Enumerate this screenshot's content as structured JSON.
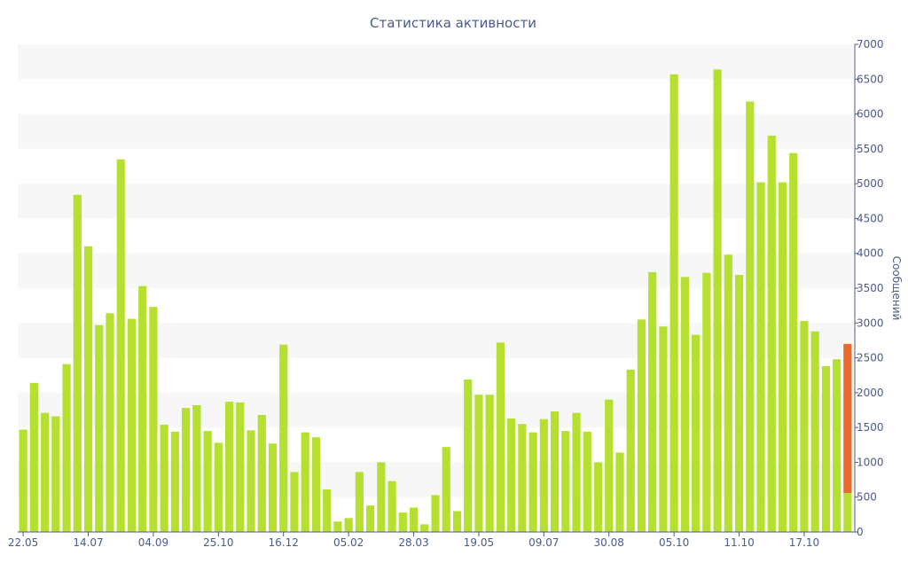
{
  "chart_data": {
    "type": "bar",
    "title": "Статистика активности",
    "ylabel": "Сообщений",
    "xlabel": "",
    "ylim": [
      0,
      7000
    ],
    "yticks": [
      0,
      500,
      1000,
      1500,
      2000,
      2500,
      3000,
      3500,
      4000,
      4500,
      5000,
      5500,
      6000,
      6500,
      7000
    ],
    "x_tick_labels": [
      "22.05",
      "14.07",
      "04.09",
      "25.10",
      "16.12",
      "05.02",
      "28.03",
      "19.05",
      "09.07",
      "30.08",
      "05.10",
      "11.10",
      "17.10"
    ],
    "x_tick_positions": [
      0,
      6,
      12,
      18,
      24,
      30,
      36,
      42,
      48,
      54,
      60,
      66,
      72
    ],
    "colors": {
      "bar": "#b5e02f",
      "highlight": "#e86a2c",
      "axis": "#4a5a8c",
      "band": "#f7f7f7"
    },
    "values": [
      1470,
      2140,
      1710,
      1660,
      2410,
      4840,
      4100,
      2970,
      3140,
      5350,
      3060,
      3530,
      3230,
      1540,
      1440,
      1780,
      1820,
      1450,
      1280,
      1870,
      1860,
      1460,
      1680,
      1270,
      2690,
      860,
      1430,
      1360,
      610,
      150,
      200,
      860,
      380,
      1000,
      730,
      280,
      350,
      110,
      530,
      1220,
      300,
      2190,
      1970,
      1970,
      2720,
      1630,
      1550,
      1430,
      1620,
      1730,
      1450,
      1710,
      1440,
      1000,
      1900,
      1140,
      2330,
      3050,
      3730,
      2950,
      6570,
      3660,
      2830,
      3720,
      6640,
      3980,
      3690,
      6180,
      5020,
      5690,
      5020,
      5440,
      3030,
      2880,
      2380,
      2480,
      2700
    ],
    "highlight_bar": {
      "index": 76,
      "value": 2700,
      "base": 560
    }
  }
}
